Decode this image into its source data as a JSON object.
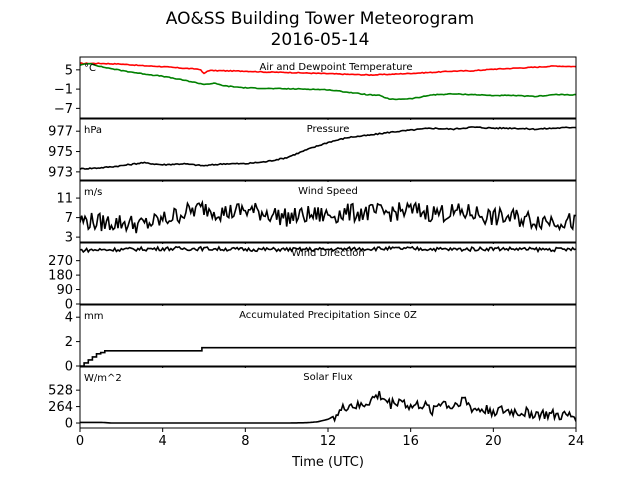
{
  "title_line1": "AO&SS Building Tower Meteorogram",
  "title_line2": "2016-05-14",
  "xlabel": "Time (UTC)",
  "colors": {
    "temperature": "#ff0000",
    "dewpoint": "#008000",
    "default": "#000000"
  },
  "chart_data": {
    "type": "line",
    "x_axis": {
      "min": 0,
      "max": 24,
      "ticks": [
        0,
        4,
        8,
        12,
        16,
        20,
        24
      ]
    },
    "panels": [
      {
        "key": "temp",
        "title": "Air and Dewpoint Temperature",
        "unit": "°C",
        "ylim": [
          -10,
          9
        ],
        "yticks": [
          5,
          -1,
          -7
        ],
        "ytick_labels": [
          "5",
          "−1",
          "−7"
        ],
        "series": [
          {
            "name": "",
            "color": "#ff0000",
            "x": [
              0,
              1,
              2,
              3,
              4,
              5,
              5.8,
              6.0,
              6.2,
              7,
              8,
              9,
              10,
              11,
              12,
              13,
              14,
              15,
              16,
              17,
              18,
              19,
              20,
              21,
              22,
              23,
              24
            ],
            "y": [
              7.0,
              7.0,
              6.8,
              6.3,
              6.0,
              5.5,
              5.2,
              3.8,
              4.8,
              4.7,
              4.6,
              4.3,
              4.2,
              4.0,
              3.8,
              3.6,
              3.4,
              3.6,
              3.9,
              4.2,
              4.6,
              4.7,
              5.2,
              5.5,
              5.8,
              6.2,
              6.0
            ]
          },
          {
            "name": "",
            "color": "#008000",
            "x": [
              0,
              0.5,
              1,
              2,
              3,
              4,
              5,
              6,
              6.5,
              7,
              8,
              9,
              10,
              11,
              12,
              13,
              14,
              14.5,
              15,
              16,
              16.5,
              17,
              18,
              19,
              20,
              21,
              22,
              23,
              24
            ],
            "y": [
              6.5,
              7.0,
              6.0,
              4.8,
              3.8,
              3.0,
              1.8,
              0.5,
              0.8,
              0.0,
              -0.6,
              -0.8,
              -0.9,
              -1.0,
              -1.2,
              -2.0,
              -2.8,
              -3.0,
              -4.2,
              -4.0,
              -3.5,
              -2.8,
              -2.5,
              -2.7,
              -3.0,
              -3.0,
              -3.3,
              -2.7,
              -2.8
            ]
          }
        ]
      },
      {
        "key": "pres",
        "title": "Pressure",
        "unit": "hPa",
        "ylim": [
          972.2,
          978.2
        ],
        "yticks": [
          973,
          975,
          977
        ],
        "ytick_labels": [
          "973",
          "975",
          "977"
        ],
        "series": [
          {
            "name": "",
            "color": "#000000",
            "x": [
              0,
              1,
              2,
              3,
              4,
              5,
              6,
              7,
              8,
              9,
              10,
              11,
              12,
              13,
              14,
              15,
              16,
              17,
              18,
              19,
              20,
              21,
              22,
              23,
              24
            ],
            "y": [
              973.3,
              973.4,
              973.6,
              973.9,
              973.7,
              973.8,
              973.6,
              973.8,
              973.8,
              974.0,
              974.4,
              975.2,
              975.9,
              976.4,
              976.6,
              976.9,
              977.1,
              977.3,
              977.2,
              977.4,
              977.3,
              977.3,
              977.2,
              977.3,
              977.4
            ]
          }
        ]
      },
      {
        "key": "wspd",
        "title": "Wind Speed",
        "unit": "m/s",
        "ylim": [
          2,
          14.5
        ],
        "yticks": [
          3,
          7,
          11
        ],
        "ytick_labels": [
          "3",
          "7",
          "11"
        ],
        "series": [
          {
            "name": "",
            "color": "#000000",
            "x": [
              0,
              1,
              2,
              3,
              4,
              5,
              6,
              7,
              8,
              9,
              10,
              11,
              12,
              13,
              14,
              15,
              16,
              17,
              18,
              19,
              20,
              21,
              22,
              23,
              24
            ],
            "y": [
              6.5,
              6.0,
              6.0,
              5.5,
              6.5,
              8.0,
              9.0,
              8.0,
              8.5,
              8.0,
              7.0,
              7.5,
              7.5,
              8.0,
              8.0,
              8.0,
              8.5,
              8.0,
              8.0,
              8.0,
              7.0,
              7.0,
              6.5,
              6.5,
              6.0
            ]
          }
        ]
      },
      {
        "key": "wdir",
        "title": "Wind Direction",
        "unit": "",
        "ylim": [
          0,
          380
        ],
        "yticks": [
          0,
          90,
          180,
          270
        ],
        "ytick_labels": [
          "0",
          "90",
          "180",
          "270"
        ],
        "series": [
          {
            "name": "",
            "color": "#000000",
            "x": [
              0,
              2,
              4,
              6,
              8,
              10,
              12,
              14,
              16,
              18,
              20,
              22,
              24
            ],
            "y": [
              335,
              340,
              345,
              345,
              340,
              340,
              340,
              345,
              345,
              340,
              345,
              340,
              340
            ]
          }
        ]
      },
      {
        "key": "prcp",
        "title": "Accumulated Precipitation Since 0Z",
        "unit": "mm",
        "ylim": [
          0,
          5
        ],
        "yticks": [
          0,
          2,
          4
        ],
        "ytick_labels": [
          "0",
          "2",
          "4"
        ],
        "series": [
          {
            "name": "",
            "color": "#000000",
            "step": true,
            "x": [
              0,
              0.2,
              0.4,
              0.6,
              0.8,
              1.0,
              1.2,
              5.9,
              24
            ],
            "y": [
              0,
              0.25,
              0.5,
              0.75,
              1.0,
              1.1,
              1.25,
              1.5,
              1.5
            ]
          }
        ]
      },
      {
        "key": "solr",
        "title": "Solar Flux",
        "unit": "W/m^2",
        "ylim": [
          -80,
          900
        ],
        "yticks": [
          0,
          264,
          528
        ],
        "ytick_labels": [
          "0",
          "264",
          "528"
        ],
        "series": [
          {
            "name": "",
            "color": "#000000",
            "x": [
              0,
              1,
              1.5,
              2,
              4,
              6,
              8,
              10,
              11,
              11.5,
              12,
              12.5,
              13,
              13.5,
              14,
              14.5,
              15,
              15.5,
              16,
              16.5,
              17,
              17.5,
              18,
              18.5,
              19,
              20,
              21,
              22,
              23,
              24
            ],
            "y": [
              10,
              10,
              0,
              0,
              0,
              0,
              0,
              0,
              5,
              20,
              60,
              150,
              300,
              250,
              350,
              450,
              300,
              380,
              250,
              300,
              200,
              350,
              250,
              400,
              220,
              200,
              180,
              150,
              120,
              100
            ]
          }
        ]
      }
    ]
  }
}
